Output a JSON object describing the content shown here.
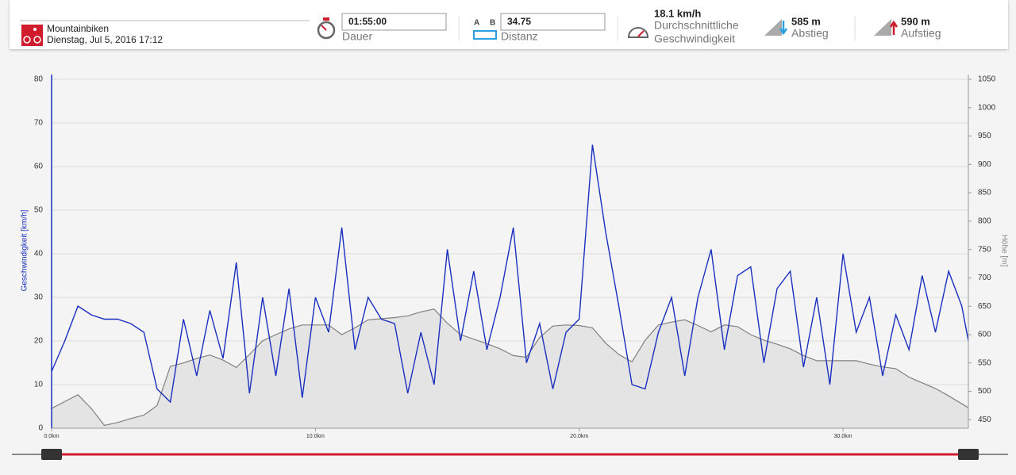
{
  "activity": {
    "sport": "Mountainbiken",
    "datetime": "Dienstag, Jul 5, 2016 17:12"
  },
  "stats": {
    "duration": {
      "value": "01:55:00",
      "label": "Dauer"
    },
    "distance": {
      "a": "A",
      "b": "B",
      "value": "34.75",
      "label": "Distanz"
    },
    "avg_speed": {
      "value": "18.1 km/h",
      "label_1": "Durchschnittliche",
      "label_2": "Geschwindigkeit"
    },
    "descent": {
      "value": "585 m",
      "label": "Abstieg"
    },
    "ascent": {
      "value": "590 m",
      "label": "Aufstieg"
    }
  },
  "chart_data": {
    "type": "line",
    "y_label": "Geschwindigkeit [km/h]",
    "y2_label": "Höhe [m]",
    "x": [
      0,
      0.5,
      1,
      1.5,
      2,
      2.5,
      3,
      3.5,
      4,
      4.5,
      5,
      5.5,
      6,
      6.5,
      7,
      7.5,
      8,
      8.5,
      9,
      9.5,
      10,
      10.5,
      11,
      11.5,
      12,
      12.5,
      13,
      13.5,
      14,
      14.5,
      15,
      15.5,
      16,
      16.5,
      17,
      17.5,
      18,
      18.5,
      19,
      19.5,
      20,
      20.5,
      21,
      21.5,
      22,
      22.5,
      23,
      23.5,
      24,
      24.5,
      25,
      25.5,
      26,
      26.5,
      27,
      27.5,
      28,
      28.5,
      29,
      29.5,
      30,
      30.5,
      31,
      31.5,
      32,
      32.5,
      33,
      33.5,
      34,
      34.5,
      34.75
    ],
    "series": [
      {
        "color": "#1a2fc0",
        "values": [
          13,
          20,
          28,
          26,
          25,
          25,
          24,
          22,
          9,
          6,
          25,
          12,
          27,
          16,
          38,
          8,
          30,
          12,
          32,
          7,
          30,
          22,
          46,
          18,
          30,
          25,
          24,
          8,
          22,
          10,
          41,
          20,
          36,
          18,
          30,
          46,
          15,
          24,
          9,
          22,
          25,
          65,
          45,
          28,
          10,
          9,
          22,
          30,
          12,
          30,
          41,
          18,
          35,
          37,
          15,
          32,
          36,
          14,
          30,
          10,
          40,
          22,
          30,
          12,
          26,
          18,
          35,
          22,
          36,
          28,
          20
        ]
      },
      {
        "color": "#808080",
        "fill": "#e4e4e4",
        "axis": "y2",
        "values": [
          470,
          482,
          494,
          470,
          440,
          445,
          452,
          458,
          475,
          544,
          550,
          558,
          564,
          555,
          542,
          565,
          589,
          600,
          610,
          617,
          617,
          617,
          600,
          612,
          626,
          628,
          630,
          633,
          640,
          645,
          620,
          600,
          592,
          584,
          575,
          563,
          560,
          595,
          615,
          617,
          616,
          612,
          585,
          565,
          552,
          590,
          617,
          622,
          626,
          616,
          605,
          617,
          614,
          600,
          590,
          583,
          575,
          563,
          554,
          554,
          554,
          554,
          548,
          543,
          540,
          525,
          515,
          505,
          492,
          478,
          471
        ]
      }
    ],
    "xlim": [
      0,
      34.75
    ],
    "xticks": [
      {
        "value": 0,
        "label": "0.0km"
      },
      {
        "value": 10,
        "label": "10.0km"
      },
      {
        "value": 20,
        "label": "20.0km"
      },
      {
        "value": 30,
        "label": "30.0km"
      }
    ],
    "ylim": [
      0,
      80
    ],
    "yticks": [
      0,
      10,
      20,
      30,
      40,
      50,
      60,
      70,
      80
    ],
    "y2lim": [
      435,
      1050
    ],
    "y2ticks": [
      450,
      500,
      550,
      600,
      650,
      700,
      750,
      800,
      850,
      900,
      950,
      1000,
      1050
    ],
    "grid": true
  }
}
